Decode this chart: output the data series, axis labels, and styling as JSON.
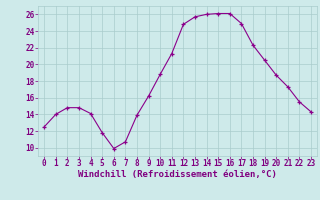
{
  "x": [
    0,
    1,
    2,
    3,
    4,
    5,
    6,
    7,
    8,
    9,
    10,
    11,
    12,
    13,
    14,
    15,
    16,
    17,
    18,
    19,
    20,
    21,
    22,
    23
  ],
  "y": [
    12.5,
    14.0,
    14.8,
    14.8,
    14.1,
    11.8,
    9.9,
    10.7,
    13.9,
    16.2,
    18.8,
    21.3,
    24.8,
    25.7,
    26.0,
    26.1,
    26.1,
    24.9,
    22.3,
    20.5,
    18.7,
    17.3,
    15.5,
    14.3
  ],
  "line_color": "#8B008B",
  "marker": "+",
  "bg_color": "#ceeaea",
  "grid_color": "#aacccc",
  "xlabel": "Windchill (Refroidissement éolien,°C)",
  "ylabel_ticks": [
    10,
    12,
    14,
    16,
    18,
    20,
    22,
    24,
    26
  ],
  "xlim": [
    -0.5,
    23.5
  ],
  "ylim": [
    9.0,
    27.0
  ],
  "tick_color": "#800080",
  "axis_label_color": "#800080",
  "xlabel_fontsize": 6.5,
  "tick_fontsize": 5.5
}
